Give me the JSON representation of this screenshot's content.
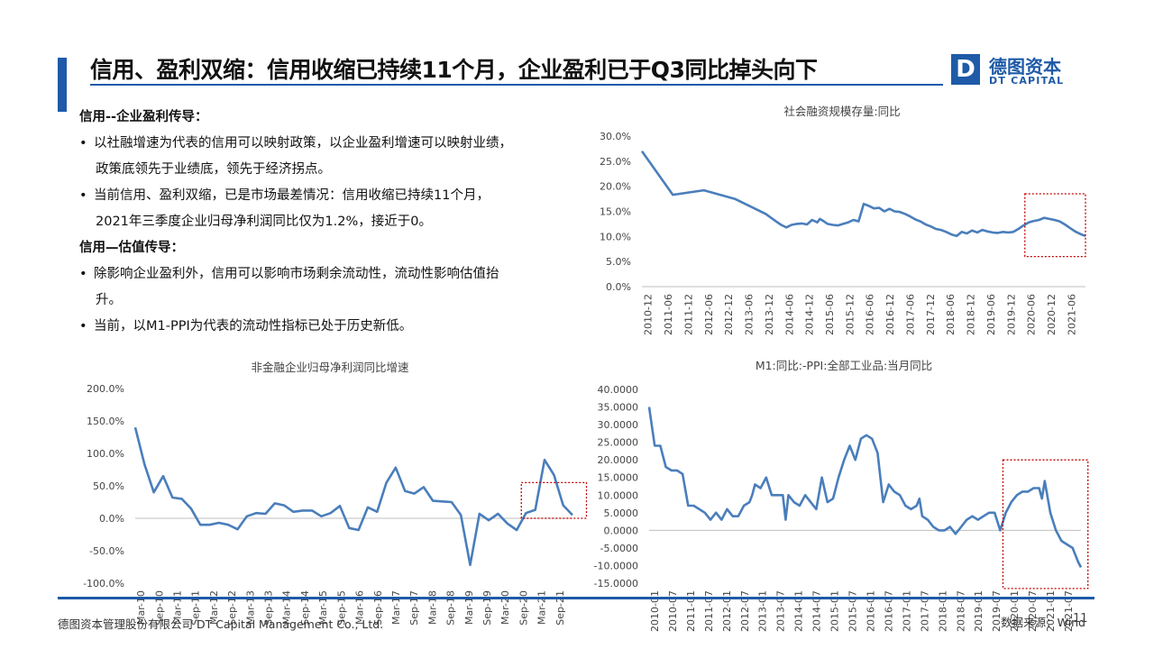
{
  "header": {
    "title": "信用、盈利双缩：信用收缩已持续11个月，企业盈利已于Q3同比掉头向下",
    "logo_mark": "D",
    "logo_cn": "德图资本",
    "logo_en": "DT CAPITAL"
  },
  "text": {
    "h1": "信用--企业盈利传导：",
    "b1_line1": "以社融增速为代表的信用可以映射政策，以企业盈利增速可以映射业绩，",
    "b1_line2": "政策底领先于业绩底，领先于经济拐点。",
    "b2_line1": "当前信用、盈利双缩，已是市场最差情况：信用收缩已持续11个月，",
    "b2_line2": "2021年三季度企业归母净利润同比仅为1.2%，接近于0。",
    "h2": "信用—估值传导：",
    "b3_line1": "除影响企业盈利外，信用可以影响市场剩余流动性，流动性影响估值抬",
    "b3_line2": "升。",
    "b4_line1": "当前，以M1-PPI为代表的流动性指标已处于历史新低。"
  },
  "footer": {
    "company": "德图资本管理股份有限公司  DT Capital Management Co.,  Ltd.",
    "source": "数据来源：Wind",
    "page": "11"
  },
  "colors": {
    "accent": "#1e5aa8",
    "line": "#4a7ebb",
    "highlight_box": "#c00000"
  },
  "chart_data": [
    {
      "type": "line",
      "title": "社会融资规模存量:同比",
      "ylim": [
        0,
        30
      ],
      "yticks": [
        "30.0%",
        "25.0%",
        "20.0%",
        "15.0%",
        "10.0%",
        "5.0%",
        "0.0%"
      ],
      "xticks": [
        "2010-12",
        "2011-06",
        "2011-12",
        "2012-06",
        "2012-12",
        "2013-06",
        "2013-12",
        "2014-06",
        "2014-12",
        "2015-06",
        "2015-12",
        "2016-06",
        "2016-12",
        "2017-06",
        "2017-12",
        "2018-06",
        "2018-12",
        "2019-06",
        "2019-12",
        "2020-06",
        "2020-12",
        "2021-06"
      ],
      "grid": false,
      "series": [
        {
          "x": [
            0,
            12,
            24,
            36,
            48,
            52,
            54,
            56,
            58,
            60,
            62,
            64,
            66,
            68,
            69,
            70,
            72,
            74,
            76,
            78,
            80,
            82,
            84,
            86,
            88,
            90,
            92,
            94,
            96,
            98,
            100,
            102,
            104,
            106,
            108,
            110,
            112,
            114,
            116,
            118,
            120,
            122,
            124,
            126,
            128,
            130,
            132,
            134,
            136,
            138,
            140,
            142,
            144,
            146,
            148,
            150,
            152,
            154,
            156,
            158,
            160,
            162,
            164,
            166,
            168,
            170,
            172
          ],
          "y": [
            27.0,
            18.3,
            19.2,
            17.5,
            14.5,
            13.0,
            12.3,
            11.8,
            12.3,
            12.5,
            12.6,
            12.4,
            13.3,
            12.8,
            13.5,
            13.2,
            12.5,
            12.3,
            12.2,
            12.5,
            12.8,
            13.3,
            13.0,
            16.5,
            16.1,
            15.6,
            15.7,
            15.0,
            15.5,
            15.0,
            14.9,
            14.5,
            14.0,
            13.4,
            13.0,
            12.4,
            12.0,
            11.5,
            11.3,
            10.9,
            10.4,
            10.1,
            10.9,
            10.6,
            11.2,
            10.8,
            11.3,
            11.0,
            10.8,
            10.7,
            10.9,
            10.8,
            10.9,
            11.5,
            12.2,
            12.8,
            13.1,
            13.3,
            13.7,
            13.5,
            13.3,
            13.0,
            12.4,
            11.7,
            11.0,
            10.5,
            10.1
          ]
        }
      ],
      "xmax": 172,
      "highlight": "2020-06 to 2021-09"
    },
    {
      "type": "line",
      "title": "非金融企业归母净利润同比增速",
      "ylim": [
        -100,
        200
      ],
      "yticks": [
        "200.0%",
        "150.0%",
        "100.0%",
        "50.0%",
        "0.0%",
        "-50.0%",
        "-100.0%"
      ],
      "xticks": [
        "Mar-10",
        "Sep-10",
        "Mar-11",
        "Sep-11",
        "Mar-12",
        "Sep-12",
        "Mar-13",
        "Sep-13",
        "Mar-14",
        "Sep-14",
        "Mar-15",
        "Sep-15",
        "Mar-16",
        "Sep-16",
        "Mar-17",
        "Sep-17",
        "Mar-18",
        "Sep-18",
        "Mar-19",
        "Sep-19",
        "Mar-20",
        "Sep-20",
        "Mar-21",
        "Sep-21"
      ],
      "grid": false,
      "series": [
        {
          "values": [
            140,
            83,
            40,
            65,
            32,
            30,
            15,
            -10,
            -10,
            -7,
            -10,
            -17,
            3,
            8,
            7,
            23,
            20,
            10,
            12,
            12,
            3,
            8,
            19,
            -15,
            -18,
            17,
            10,
            55,
            78,
            42,
            38,
            48,
            27,
            26,
            25,
            5,
            -72,
            7,
            -3,
            7,
            -8,
            -18,
            8,
            13,
            90,
            67,
            20,
            5
          ]
        }
      ],
      "highlight": "Jun-20 to Sep-21"
    },
    {
      "type": "line",
      "title": "M1:同比:-PPI:全部工业品:当月同比",
      "ylim": [
        -15,
        40
      ],
      "yticks": [
        "40.0000",
        "35.0000",
        "30.0000",
        "25.0000",
        "20.0000",
        "15.0000",
        "10.0000",
        "5.0000",
        "0.0000",
        "-5.0000",
        "-10.0000",
        "-15.0000"
      ],
      "xticks": [
        "2010-01",
        "2010-07",
        "2011-01",
        "2011-07",
        "2012-01",
        "2012-07",
        "2013-01",
        "2013-07",
        "2014-01",
        "2014-07",
        "2015-01",
        "2015-07",
        "2016-01",
        "2016-07",
        "2017-01",
        "2017-07",
        "2018-01",
        "2018-07",
        "2019-01",
        "2019-07",
        "2020-01",
        "2020-07",
        "2021-01",
        "2021-07"
      ],
      "grid": false,
      "series": [
        {
          "x": [
            0,
            2,
            4,
            6,
            8,
            10,
            12,
            14,
            16,
            18,
            20,
            22,
            24,
            26,
            28,
            30,
            32,
            34,
            36,
            37,
            38,
            40,
            42,
            44,
            46,
            48,
            49,
            50,
            52,
            54,
            56,
            58,
            60,
            62,
            64,
            66,
            68,
            70,
            72,
            74,
            76,
            78,
            80,
            82,
            84,
            86,
            88,
            90,
            92,
            94,
            96,
            97,
            98,
            100,
            102,
            104,
            106,
            108,
            110,
            112,
            114,
            116,
            118,
            120,
            122,
            124,
            126,
            128,
            130,
            132,
            134,
            136,
            138,
            140,
            141,
            142,
            144,
            146,
            148,
            150,
            152,
            153,
            154,
            155
          ],
          "y": [
            35,
            24,
            24,
            18,
            17,
            17,
            16,
            7,
            7,
            6,
            5,
            3,
            5,
            3,
            6,
            4,
            4,
            7,
            8,
            10,
            13,
            12,
            15,
            10,
            10,
            10,
            3,
            10,
            8,
            7,
            10,
            8,
            6,
            15,
            8,
            9,
            15,
            20,
            24,
            20,
            26,
            27,
            26,
            22,
            8,
            13,
            11,
            10,
            7,
            6,
            7,
            9,
            4,
            3,
            1,
            0,
            0,
            1,
            -1,
            1,
            3,
            4,
            3,
            4,
            5,
            5,
            0,
            5,
            8,
            10,
            11,
            11,
            12,
            12,
            9,
            14,
            5,
            0,
            -3,
            -4,
            -5,
            -7,
            -9,
            -10.5
          ]
        }
      ],
      "xmax": 155,
      "highlight": "2020-07 to 2021-09"
    }
  ]
}
